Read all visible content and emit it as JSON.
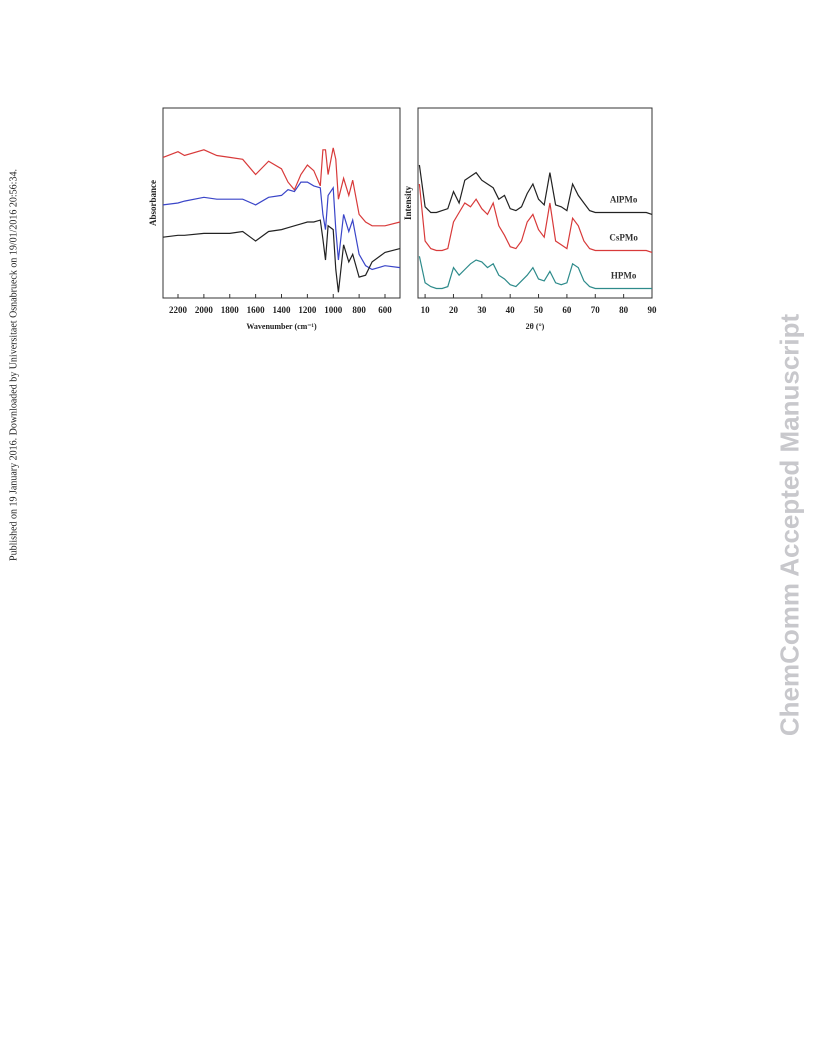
{
  "side_note": "Published on 19 January 2016. Downloaded by Universitaet Osnabrueck on 19/01/2016 20:56:34.",
  "watermark": "ChemComm Accepted Manuscript",
  "chart_data": [
    {
      "type": "line",
      "x_label": "Wavenumber (cm⁻¹)",
      "y_label": "Absorbance",
      "x": [
        2316,
        2200,
        2150,
        2000,
        1900,
        1800,
        1700,
        1600,
        1500,
        1400,
        1350,
        1300,
        1250,
        1200,
        1150,
        1100,
        1080,
        1060,
        1040,
        1000,
        980,
        960,
        920,
        880,
        850,
        800,
        750,
        700,
        600,
        484
      ],
      "xlim": [
        2316,
        484
      ],
      "ylim": [
        0,
        100
      ],
      "xticks": [
        2200,
        2000,
        1800,
        1600,
        1400,
        1200,
        1000,
        800,
        600
      ],
      "series": [
        {
          "color": "#d83a3a",
          "values": [
            74,
            77,
            75,
            78,
            75,
            74,
            73,
            65,
            72,
            68,
            61,
            57,
            65,
            70,
            67,
            59,
            78,
            78,
            65,
            79,
            73,
            52,
            63,
            54,
            62,
            44,
            40,
            38,
            38,
            40
          ]
        },
        {
          "color": "#3a45c8",
          "values": [
            49,
            50,
            51,
            53,
            52,
            52,
            52,
            49,
            53,
            54,
            57,
            56,
            61,
            61,
            59,
            58,
            44,
            36,
            54,
            58,
            36,
            20,
            44,
            35,
            41,
            23,
            17,
            15,
            17,
            16
          ]
        },
        {
          "color": "#222222",
          "values": [
            32,
            33,
            33,
            34,
            34,
            34,
            35,
            30,
            35,
            36,
            37,
            38,
            39,
            40,
            40,
            41,
            31,
            20,
            38,
            36,
            15,
            3,
            28,
            19,
            23,
            11,
            12,
            19,
            24,
            26
          ]
        }
      ]
    },
    {
      "type": "line",
      "x_label": "2θ (°)",
      "y_label": "Intensity",
      "x": [
        8,
        10,
        12,
        14,
        16,
        18,
        20,
        22,
        24,
        26,
        28,
        30,
        32,
        34,
        36,
        38,
        40,
        42,
        44,
        46,
        48,
        50,
        52,
        54,
        56,
        58,
        60,
        62,
        64,
        66,
        68,
        70,
        72,
        74,
        76,
        78,
        80,
        82,
        84,
        86,
        88,
        90
      ],
      "xlim": [
        7.5,
        90
      ],
      "ylim": [
        0,
        100
      ],
      "xticks": [
        10,
        20,
        30,
        40,
        50,
        60,
        70,
        80,
        90
      ],
      "series": [
        {
          "name": "AlPMo",
          "color": "#222222",
          "values": [
            70,
            48,
            45,
            45,
            46,
            47,
            56,
            50,
            62,
            64,
            66,
            62,
            60,
            58,
            52,
            54,
            47,
            46,
            48,
            55,
            60,
            52,
            49,
            66,
            49,
            48,
            46,
            60,
            54,
            50,
            46,
            45,
            45,
            45,
            45,
            45,
            45,
            45,
            45,
            45,
            45,
            44
          ]
        },
        {
          "name": "CsPMo",
          "color": "#d83a3a",
          "values": [
            60,
            30,
            26,
            25,
            25,
            26,
            40,
            45,
            50,
            48,
            52,
            47,
            44,
            50,
            38,
            33,
            27,
            26,
            30,
            40,
            44,
            36,
            32,
            50,
            30,
            28,
            26,
            42,
            38,
            30,
            26,
            25,
            25,
            25,
            25,
            25,
            25,
            25,
            25,
            25,
            25,
            24
          ]
        },
        {
          "name": "HPMo",
          "color": "#2e8b8b",
          "values": [
            22,
            8,
            6,
            5,
            5,
            6,
            16,
            12,
            15,
            18,
            20,
            19,
            16,
            18,
            12,
            10,
            7,
            6,
            9,
            12,
            16,
            10,
            9,
            14,
            8,
            7,
            8,
            18,
            16,
            9,
            6,
            5,
            5,
            5,
            5,
            5,
            5,
            5,
            5,
            5,
            5,
            5
          ]
        }
      ]
    }
  ]
}
